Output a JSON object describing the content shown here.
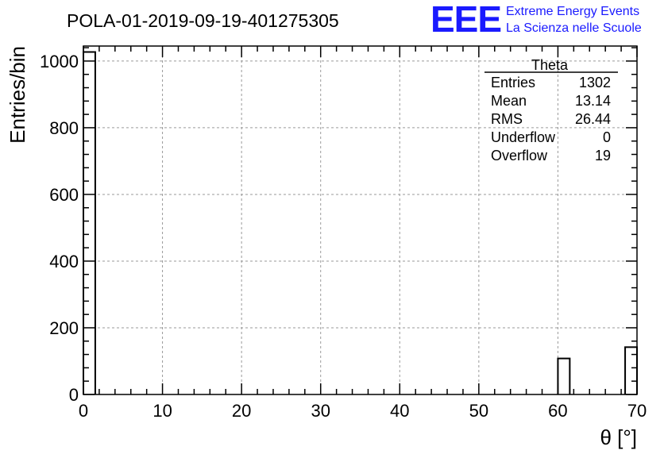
{
  "chart_data": {
    "type": "bar",
    "title": "POLA-01-2019-09-19-401275305",
    "xlabel": "θ [°]",
    "ylabel": "Entries/bin",
    "xlim": [
      0,
      70
    ],
    "ylim": [
      0,
      1000
    ],
    "x_ticks": [
      "0",
      "10",
      "20",
      "30",
      "40",
      "50",
      "60",
      "70"
    ],
    "y_ticks": [
      "0",
      "200",
      "400",
      "600",
      "800",
      "1000"
    ],
    "grid": true,
    "bins": [
      {
        "x0": 0,
        "x1": 1.5,
        "value": 1027
      },
      {
        "x0": 60,
        "x1": 61.5,
        "value": 108
      },
      {
        "x0": 68.5,
        "x1": 70,
        "value": 142
      }
    ],
    "stats_box": {
      "name": "Theta",
      "rows": [
        {
          "label": "Entries",
          "value": "1302"
        },
        {
          "label": "Mean",
          "value": "13.14"
        },
        {
          "label": "RMS",
          "value": "26.44"
        },
        {
          "label": "Underflow",
          "value": "0"
        },
        {
          "label": "Overflow",
          "value": "19"
        }
      ]
    },
    "logo": {
      "mark": "EEE",
      "line1": "Extreme Energy Events",
      "line2": "La Scienza nelle Scuole",
      "color": "#1a1aff"
    }
  }
}
